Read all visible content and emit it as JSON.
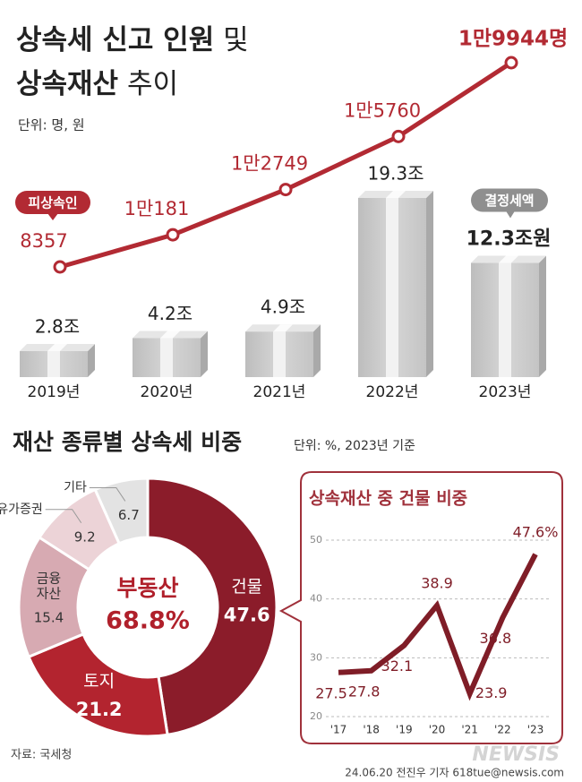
{
  "header": {
    "title_bold_1": "상속세 신고 인원",
    "title_light_1": "및",
    "title_bold_2": "상속재산",
    "title_light_2": "추이",
    "unit": "단위: 명, 원"
  },
  "chart_data": [
    {
      "type": "combo",
      "categories": [
        "2019년",
        "2020년",
        "2021년",
        "2022년",
        "2023년"
      ],
      "series": [
        {
          "name": "피상속인",
          "kind": "line",
          "color": "#b22a33",
          "values": [
            8357,
            10181,
            12749,
            15760,
            19944
          ],
          "value_labels": [
            "8357",
            "1만181",
            "1만2749",
            "1만5760",
            "1만9944명"
          ]
        },
        {
          "name": "결정세액",
          "kind": "box",
          "color": "#c9c9c9",
          "values": [
            2.8,
            4.2,
            4.9,
            19.3,
            12.3
          ],
          "value_labels": [
            "2.8조",
            "4.2조",
            "4.9조",
            "19.3조",
            "12.3조원"
          ]
        }
      ]
    },
    {
      "type": "pie",
      "title": "재산 종류별 상속세 비중",
      "subtitle": "단위: %, 2023년 기준",
      "categories": [
        "건물",
        "토지",
        "금융\n자산",
        "유가증권",
        "기타"
      ],
      "values": [
        47.6,
        21.2,
        15.4,
        9.2,
        6.7
      ],
      "colors": [
        "#8b1c2a",
        "#b3242f",
        "#d7aab2",
        "#ecd3d7",
        "#e3e3e3"
      ],
      "center_label": "부동산",
      "center_value_label": "68.8%"
    },
    {
      "type": "line",
      "title": "상속재산 중 건물 비중",
      "color": "#7f1d27",
      "categories": [
        "'17",
        "'18",
        "'19",
        "'20",
        "'21",
        "'22",
        "'23"
      ],
      "values": [
        27.5,
        27.8,
        32.1,
        38.9,
        23.9,
        36.8,
        47.6
      ],
      "value_labels": [
        "27.5",
        "27.8",
        "32.1",
        "38.9",
        "23.9",
        "36.8",
        "47.6%"
      ],
      "ylim": [
        20,
        50
      ],
      "yticks": [
        20,
        30,
        40,
        50
      ],
      "grid": true
    }
  ],
  "footer": {
    "source": "자료: 국세청",
    "logo": "NEWSIS",
    "credit": "24.06.20 전진우 기자 618tue@newsis.com"
  }
}
